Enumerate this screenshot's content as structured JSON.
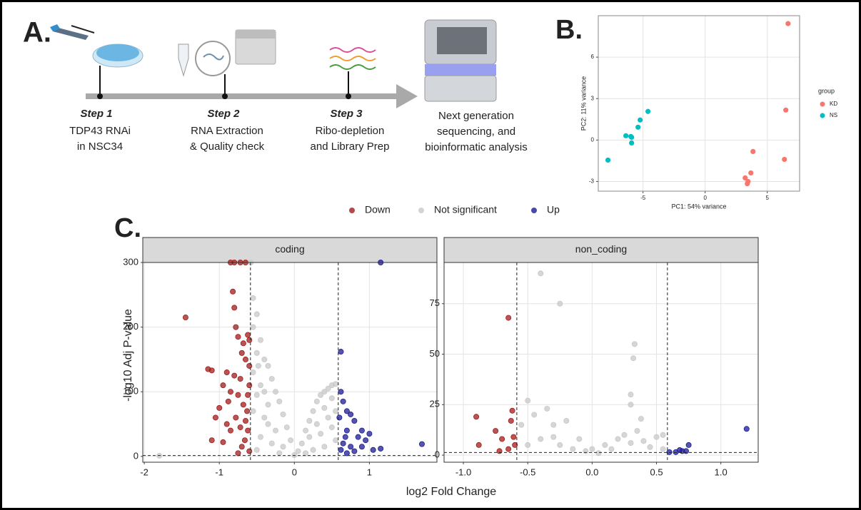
{
  "workflow": {
    "panel_label": "A.",
    "steps": [
      {
        "label": "Step 1",
        "lines": [
          "TDP43 RNAi",
          "in NSC34"
        ]
      },
      {
        "label": "Step 2",
        "lines": [
          "RNA  Extraction",
          "& Quality check"
        ]
      },
      {
        "label": "Step 3",
        "lines": [
          "Ribo-depletion",
          "and Library Prep"
        ]
      }
    ],
    "final": [
      "Next generation",
      "sequencing, and",
      "bioinformatic analysis"
    ]
  },
  "chart_data": [
    {
      "type": "scatter",
      "panel_label": "B.",
      "xlabel": "PC1: 54% variance",
      "ylabel": "PC2: 11% variance",
      "legend_title": "group",
      "grid": true,
      "xlim": [
        -8.6,
        7.6
      ],
      "ylim": [
        -3.7,
        9.0
      ],
      "xticks": [
        -5,
        0,
        5
      ],
      "yticks": [
        -3,
        0,
        3,
        6
      ],
      "series": [
        {
          "name": "KD",
          "color": "#f8766d",
          "x": [
            6.67,
            6.49,
            3.85,
            6.38,
            3.68,
            3.22,
            3.45,
            3.39
          ],
          "values": [
            8.43,
            2.17,
            -0.83,
            -1.4,
            -2.38,
            -2.74,
            -3.0,
            -3.16
          ]
        },
        {
          "name": "NS",
          "color": "#00bfc4",
          "x": [
            -4.6,
            -5.23,
            -5.4,
            -6.38,
            -5.98,
            -5.92,
            -5.92,
            -7.82
          ],
          "values": [
            2.07,
            1.45,
            0.93,
            0.31,
            0.26,
            0.2,
            -0.21,
            -1.45
          ]
        }
      ]
    },
    {
      "type": "volcano",
      "panel_label": "C.",
      "xlabel": "log2 Fold Change",
      "ylabel": "-log10 Adj P-value",
      "groups": [
        {
          "name": "Down",
          "color": "#a01c1c"
        },
        {
          "name": "Not significant",
          "color": "#c8c8c8"
        },
        {
          "name": "Up",
          "color": "#1c1c96"
        }
      ],
      "vlines": [
        -0.585,
        0.585
      ],
      "hline": 1.3,
      "grid": true,
      "facets": [
        {
          "title": "coding",
          "xlim": [
            -2.02,
            1.9
          ],
          "ylim": [
            -9,
            300
          ],
          "xticks": [
            -2,
            -1,
            0,
            1
          ],
          "yticks": [
            0,
            100,
            200,
            300
          ],
          "series": [
            {
              "x": [
                -1.45,
                -1.15,
                -1.1,
                -0.85,
                -0.8,
                -0.72,
                -0.65,
                -0.82,
                -0.8,
                -0.78,
                -0.75,
                -0.68,
                -0.62,
                -0.6,
                -0.7,
                -0.65,
                -0.72,
                -0.8,
                -0.9,
                -0.95,
                -1.0,
                -1.05,
                -0.9,
                -0.85,
                -0.75,
                -0.68,
                -0.63,
                -0.6,
                -0.62,
                -0.66,
                -0.7,
                -0.75,
                -0.6,
                -0.65,
                -0.88,
                -0.78,
                -0.72,
                -1.1,
                -0.95,
                -0.85,
                -0.6,
                -0.62
              ],
              "values": [
                215,
                135,
                133,
                300,
                300,
                300,
                300,
                255,
                230,
                200,
                185,
                175,
                188,
                180,
                160,
                150,
                120,
                125,
                130,
                110,
                75,
                60,
                50,
                40,
                95,
                80,
                70,
                110,
                40,
                25,
                15,
                5,
                8,
                55,
                85,
                60,
                45,
                25,
                22,
                100,
                140,
                95
              ]
            },
            {
              "x": [
                -0.55,
                -0.5,
                -0.55,
                -0.45,
                -0.5,
                -0.4,
                -0.35,
                -0.55,
                -0.3,
                -0.45,
                -0.25,
                -0.5,
                -0.2,
                -0.35,
                -0.15,
                -0.4,
                -0.1,
                -0.25,
                -0.05,
                -0.3,
                -0.45,
                -0.5,
                -0.2,
                0.0,
                0.05,
                0.1,
                0.15,
                0.2,
                0.25,
                0.3,
                0.35,
                0.4,
                0.45,
                0.5,
                0.55,
                0.5,
                0.4,
                0.45,
                0.3,
                0.2,
                0.35,
                0.5,
                0.55,
                0.25,
                0.4,
                -0.15,
                -0.35,
                -0.55,
                -0.4,
                -0.48,
                0.55,
                0.15,
                -0.58,
                -1.8
              ],
              "values": [
                245,
                220,
                200,
                180,
                160,
                150,
                140,
                130,
                120,
                110,
                100,
                95,
                85,
                80,
                65,
                60,
                45,
                40,
                25,
                20,
                30,
                10,
                5,
                2,
                8,
                20,
                40,
                55,
                70,
                85,
                95,
                100,
                105,
                110,
                112,
                90,
                75,
                60,
                50,
                30,
                35,
                45,
                25,
                10,
                15,
                15,
                50,
                70,
                100,
                140,
                70,
                5,
                300,
                1
              ]
            },
            {
              "x": [
                1.15,
                0.62,
                0.62,
                0.65,
                0.7,
                0.8,
                0.75,
                0.9,
                1.0,
                0.95,
                0.85,
                0.7,
                0.65,
                0.62,
                0.7,
                0.8,
                0.9,
                1.05,
                1.15,
                1.7,
                0.75,
                0.68,
                0.6
              ],
              "values": [
                300,
                162,
                100,
                85,
                70,
                55,
                65,
                40,
                35,
                25,
                30,
                40,
                20,
                10,
                5,
                8,
                15,
                10,
                12,
                19,
                15,
                30,
                60
              ]
            }
          ]
        },
        {
          "title": "non_coding",
          "xlim": [
            -1.15,
            1.29
          ],
          "ylim": [
            -3.5,
            95.4
          ],
          "xticks": [
            {
              "value": -1,
              "label": "-1.0"
            },
            {
              "value": -0.5,
              "label": "-0.5"
            },
            {
              "value": 0,
              "label": "0.0"
            },
            0.5,
            {
              "value": 1,
              "label": "1.0"
            }
          ],
          "yticks": [
            0,
            25,
            50,
            75
          ],
          "series": [
            {
              "x": [
                -0.9,
                -0.88,
                -0.75,
                -0.65,
                -0.62,
                -0.63,
                -0.7,
                -0.6,
                -0.65,
                -0.72,
                -0.61
              ],
              "values": [
                19,
                5,
                12,
                68,
                22,
                17,
                8,
                5,
                3,
                2,
                9
              ]
            },
            {
              "x": [
                -0.4,
                -0.25,
                0.33,
                0.32,
                0.3,
                0.3,
                -0.35,
                -0.5,
                -0.45,
                -0.3,
                -0.55,
                -0.2,
                -0.1,
                0.0,
                0.1,
                0.2,
                0.25,
                0.35,
                0.4,
                0.5,
                0.55,
                -0.25,
                -0.4,
                0.15,
                0.45,
                -0.15,
                0.3,
                -0.5,
                0.05,
                -0.05,
                0.55,
                0.38,
                -0.3
              ],
              "values": [
                90,
                75,
                55,
                48,
                30,
                25,
                23,
                27,
                20,
                15,
                15,
                17,
                8,
                3,
                5,
                8,
                10,
                12,
                7,
                9,
                10,
                5,
                8,
                3,
                4,
                3,
                6,
                5,
                1,
                2,
                3,
                18,
                9
              ]
            },
            {
              "x": [
                1.2,
                0.75,
                0.73,
                0.7,
                0.65,
                0.6,
                0.68
              ],
              "values": [
                13,
                5,
                2,
                2,
                1.5,
                1.5,
                2.5
              ]
            }
          ]
        }
      ]
    }
  ]
}
